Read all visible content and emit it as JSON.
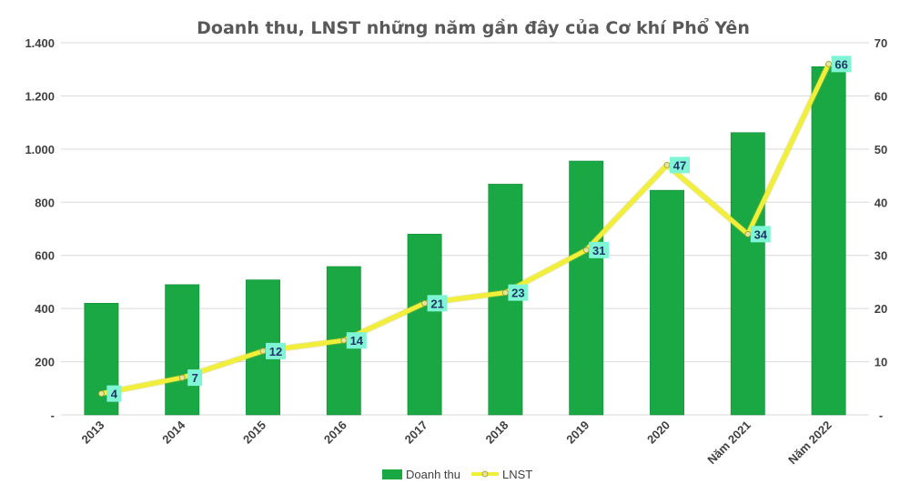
{
  "chart_data": {
    "type": "bar+line",
    "title": "Doanh thu, LNST những năm gần đây của Cơ khí Phổ Yên",
    "categories": [
      "2013",
      "2014",
      "2015",
      "2016",
      "2017",
      "2018",
      "2019",
      "2020",
      "Năm 2021",
      "Năm 2022"
    ],
    "series": [
      {
        "name": "Doanh thu",
        "type": "bar",
        "axis": "left",
        "color": "#1aa845",
        "values": [
          420,
          490,
          508,
          558,
          680,
          868,
          955,
          845,
          1062,
          1310
        ]
      },
      {
        "name": "LNST",
        "type": "line",
        "axis": "right",
        "color": "#f2ef3a",
        "values": [
          4,
          7,
          12,
          14,
          21,
          23,
          31,
          47,
          34,
          66
        ],
        "data_labels": [
          "4",
          "7",
          "12",
          "14",
          "21",
          "23",
          "31",
          "47",
          "34",
          "66"
        ],
        "label_bg_color": "#7ff5d6"
      }
    ],
    "y_left": {
      "range": [
        0,
        1400
      ],
      "ticks": [
        0,
        200,
        400,
        600,
        800,
        1000,
        1200,
        1400
      ],
      "tick_labels": [
        "-",
        "200",
        "400",
        "600",
        "800",
        "1.000",
        "1.200",
        "1.400"
      ]
    },
    "y_right": {
      "range": [
        0,
        70
      ],
      "ticks": [
        0,
        10,
        20,
        30,
        40,
        50,
        60,
        70
      ],
      "tick_labels": [
        "-",
        "10",
        "20",
        "30",
        "40",
        "50",
        "60",
        "70"
      ]
    },
    "grid": true,
    "legend": {
      "position": "bottom",
      "items": [
        "Doanh thu",
        "LNST"
      ]
    }
  }
}
